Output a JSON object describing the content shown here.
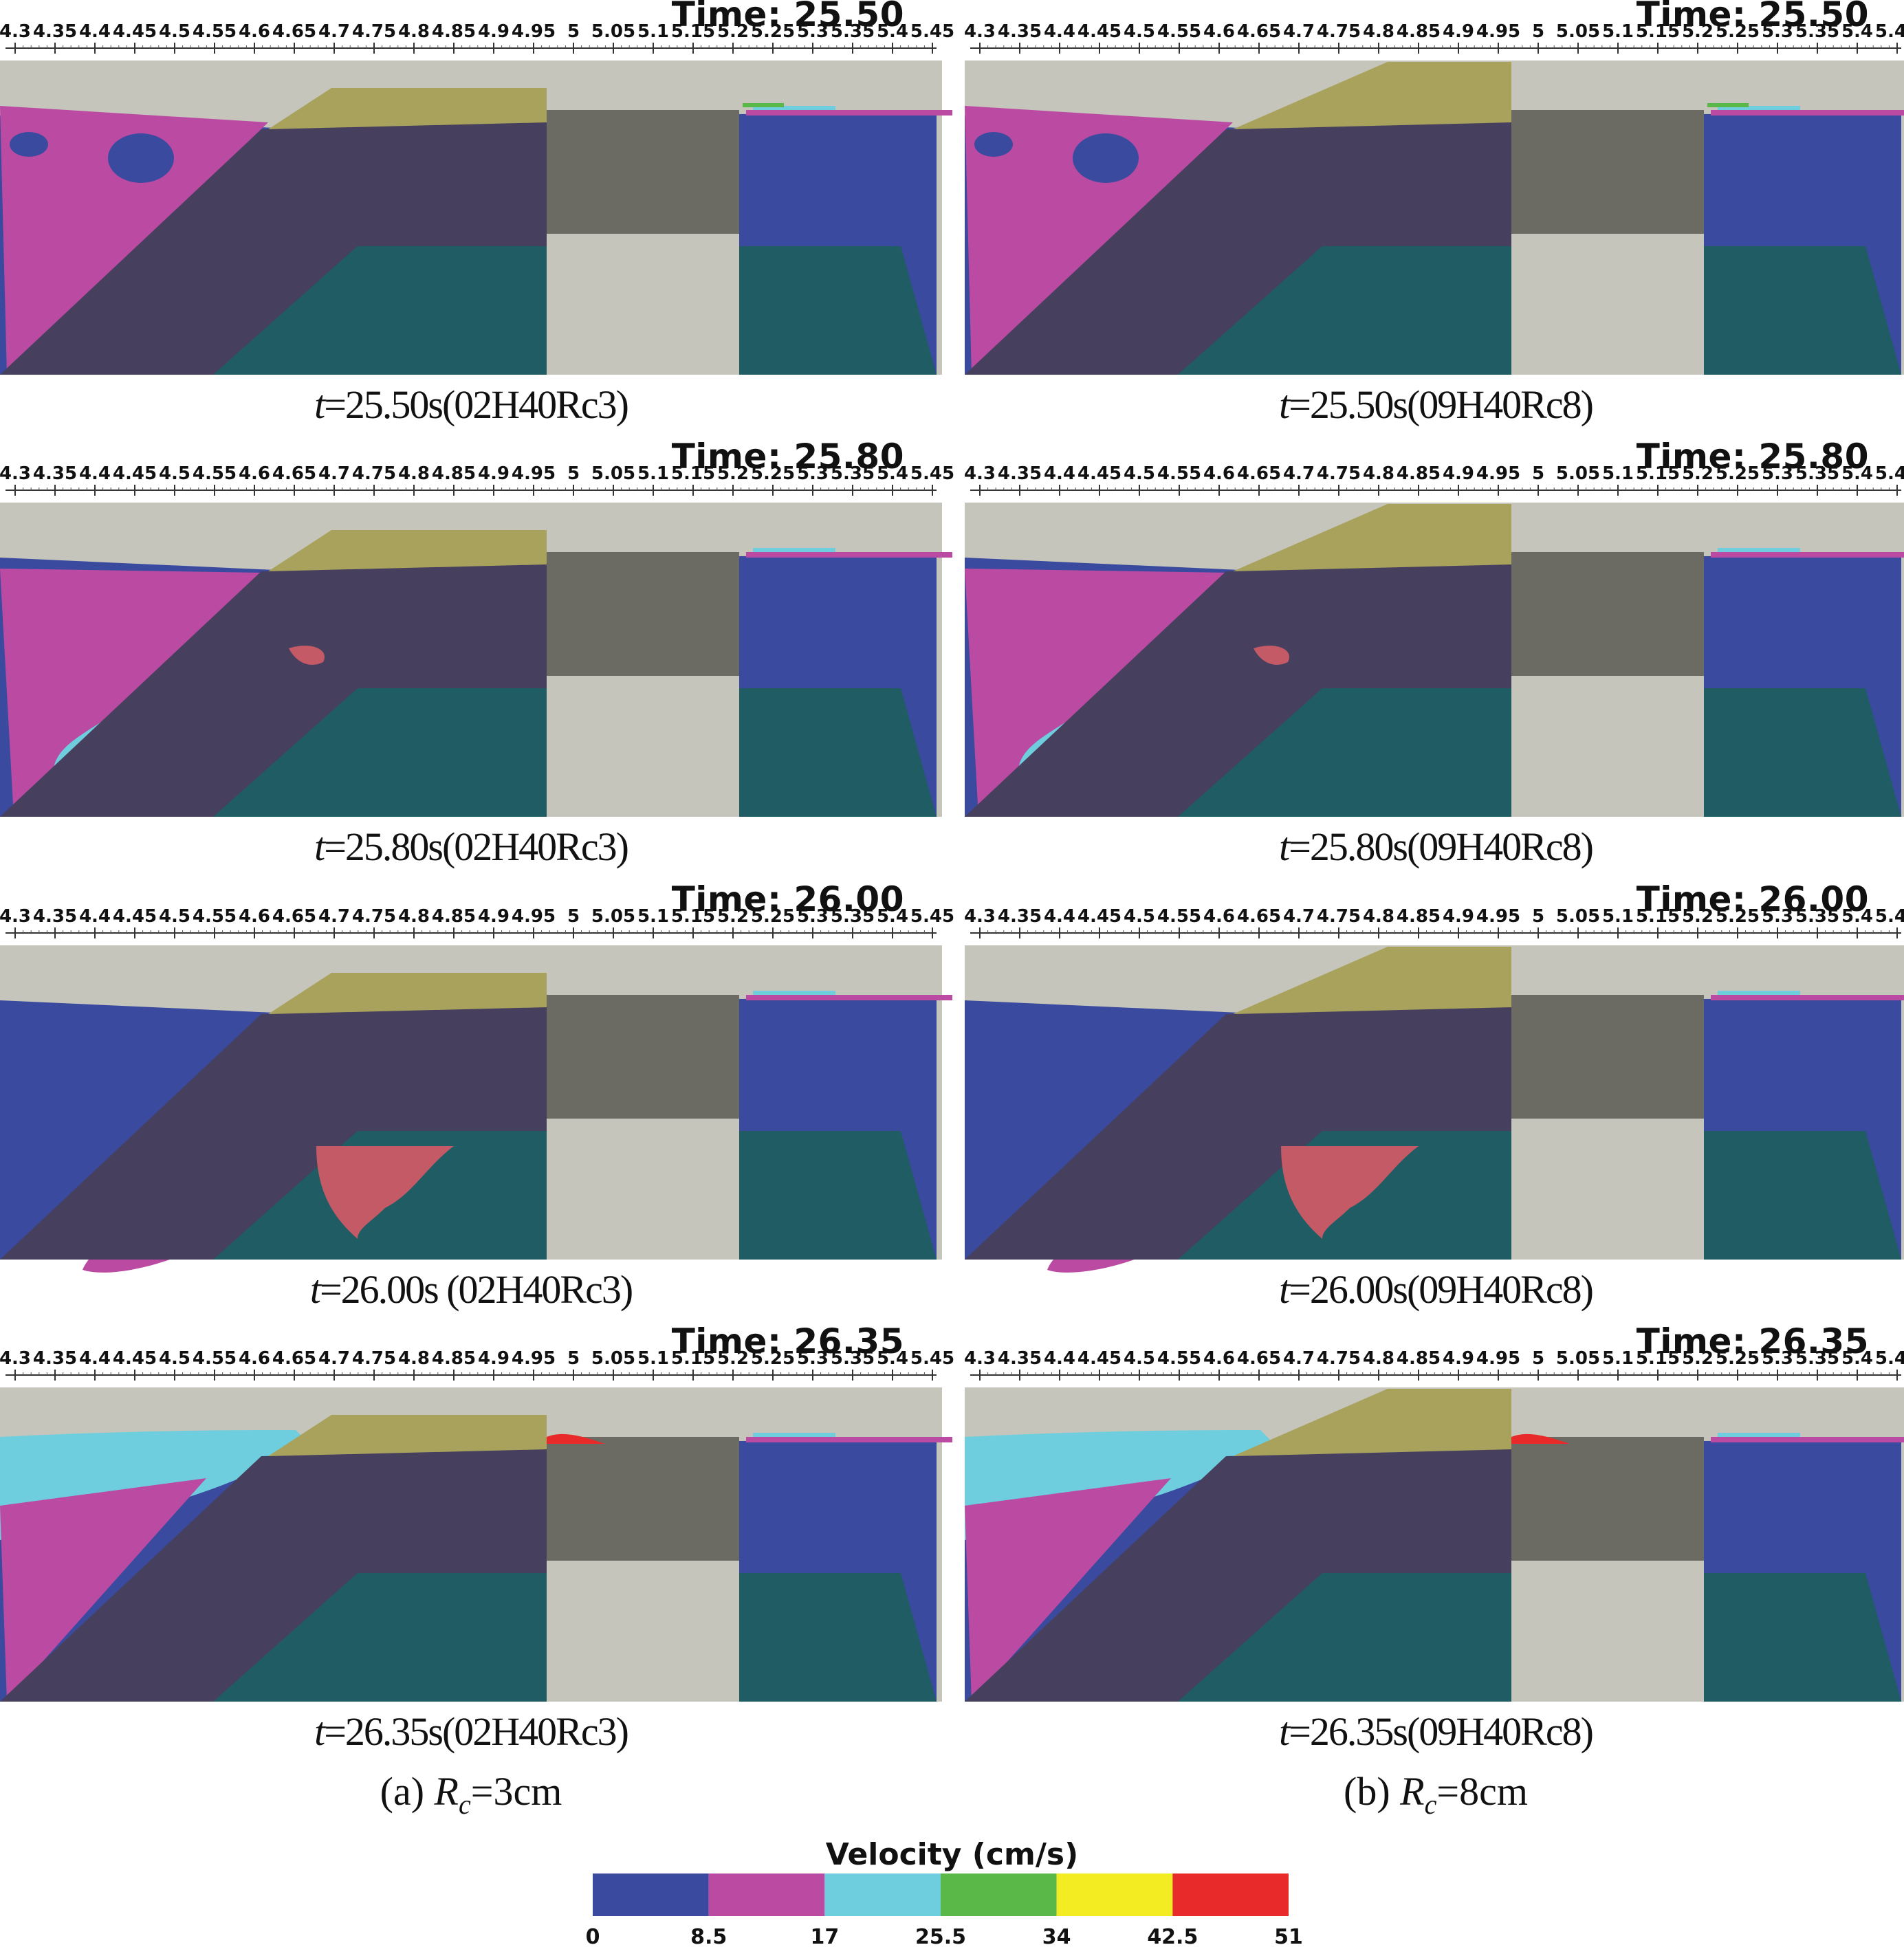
{
  "axis_ticks": [
    "4.3",
    "4.35",
    "4.4",
    "4.45",
    "4.5",
    "4.55",
    "4.6",
    "4.65",
    "4.7",
    "4.75",
    "4.8",
    "4.85",
    "4.9",
    "4.95",
    "5",
    "5.05",
    "5.1",
    "5.15",
    "5.2",
    "5.25",
    "5.3",
    "5.35",
    "5.4",
    "5.45"
  ],
  "panels": [
    {
      "time": "Time: 25.50",
      "caption_t": "t",
      "caption_rest": "=25.50s(02H40Rc3)",
      "case": "Rc3",
      "stage": 0
    },
    {
      "time": "Time: 25.50",
      "caption_t": "t",
      "caption_rest": "=25.50s(09H40Rc8)",
      "case": "Rc8",
      "stage": 0
    },
    {
      "time": "Time: 25.80",
      "caption_t": "t",
      "caption_rest": "=25.80s(02H40Rc3)",
      "case": "Rc3",
      "stage": 1
    },
    {
      "time": "Time: 25.80",
      "caption_t": "t",
      "caption_rest": "=25.80s(09H40Rc8)",
      "case": "Rc8",
      "stage": 1
    },
    {
      "time": "Time: 26.00",
      "caption_t": "t",
      "caption_rest": "=26.00s  (02H40Rc3)",
      "case": "Rc3",
      "stage": 2
    },
    {
      "time": "Time: 26.00",
      "caption_t": "t",
      "caption_rest": "=26.00s(09H40Rc8)",
      "case": "Rc8",
      "stage": 2
    },
    {
      "time": "Time: 26.35",
      "caption_t": "t",
      "caption_rest": "=26.35s(02H40Rc3)",
      "case": "Rc3",
      "stage": 3
    },
    {
      "time": "Time: 26.35",
      "caption_t": "t",
      "caption_rest": "=26.35s(09H40Rc8)",
      "case": "Rc8",
      "stage": 3
    }
  ],
  "column_labels": {
    "a_prefix": "(a)  ",
    "a_R": "R",
    "a_sub": "c",
    "a_rest": "=3cm",
    "b_prefix": "(b)  ",
    "b_R": "R",
    "b_sub": "c",
    "b_rest": "=8cm"
  },
  "colorbar": {
    "title": "Velocity (cm/s)",
    "colors": [
      "#3a4a9e",
      "#bb4aa3",
      "#6fcede",
      "#5ab848",
      "#f4ec23",
      "#e92a2a"
    ],
    "ticks": [
      "0",
      "8.5",
      "17",
      "25.5",
      "34",
      "42.5",
      "51"
    ]
  },
  "colors": {
    "air": "#c5c5bb",
    "crest": "#a8a25d",
    "structure": "#46405e",
    "base": "#1f5c63",
    "block": "#6b6b64",
    "blue": "#3a4a9e",
    "magenta": "#bb4aa3",
    "cyan": "#6fcede",
    "green": "#5ab848",
    "yellow": "#f4ec23",
    "red": "#e92a2a",
    "salmon": "#c35a66"
  }
}
